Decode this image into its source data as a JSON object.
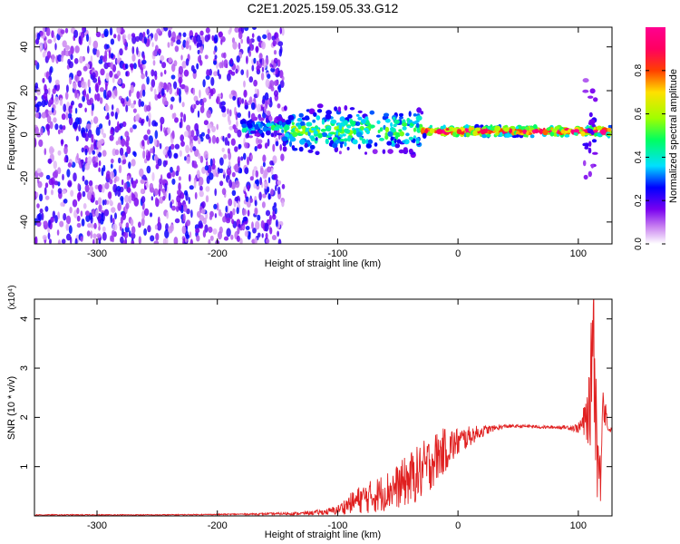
{
  "title": "C2E1.2025.159.05.33.G12",
  "chart_data": [
    {
      "type": "heatmap",
      "xlabel": "Height of straight line (km)",
      "ylabel": "Frequency (Hz)",
      "xlim": [
        -352,
        128
      ],
      "ylim": [
        -50,
        49
      ],
      "xticks": [
        -300,
        -200,
        -100,
        0,
        100
      ],
      "yticks": [
        -40,
        -20,
        0,
        20,
        40
      ],
      "grid": false,
      "colorbar": {
        "label": "Normalized spectral amplitude",
        "range": [
          0,
          1
        ],
        "ticks": [
          0.0,
          0.2,
          0.4,
          0.6,
          0.8
        ],
        "tick_labels": [
          "0.0",
          "0.2",
          "0.4",
          "0.6",
          "0.8"
        ],
        "colors": [
          "#ffffff",
          "#c880f0",
          "#7800f0",
          "#0000ff",
          "#00e0ff",
          "#00ff60",
          "#a0ff00",
          "#ffe000",
          "#ff4000",
          "#ff0060",
          "#ff0090"
        ]
      },
      "regions": [
        {
          "x_range": [
            -352,
            -145
          ],
          "freq_range": [
            -50,
            49
          ],
          "level": 0.12,
          "pattern": "scattered noise"
        },
        {
          "x_range": [
            -180,
            -145
          ],
          "freq_range": [
            -2,
            8
          ],
          "level": 0.45
        },
        {
          "x_range": [
            -145,
            -30
          ],
          "freq_range": [
            -10,
            14
          ],
          "level": 0.55
        },
        {
          "x_range": [
            -30,
            128
          ],
          "freq_range": [
            -1,
            4
          ],
          "level": 0.95
        },
        {
          "x_range": [
            105,
            115
          ],
          "freq_range": [
            -28,
            32
          ],
          "level": 0.3
        }
      ]
    },
    {
      "type": "line",
      "xlabel": "Height of straight line (km)",
      "ylabel": "SNR (10 * v/v)",
      "y_multiplier": "(x10⁴)",
      "xlim": [
        -352,
        128
      ],
      "ylim": [
        0,
        4.4
      ],
      "xticks": [
        -300,
        -200,
        -100,
        0,
        100
      ],
      "yticks": [
        1,
        2,
        3,
        4
      ],
      "color": "#e02020",
      "grid": false,
      "series": [
        {
          "x": [
            -352,
            -300,
            -250,
            -200,
            -160,
            -130,
            -110,
            -100,
            -90,
            -80,
            -70,
            -60,
            -50,
            -40,
            -30,
            -20,
            -10,
            0,
            10,
            20,
            30,
            40,
            50,
            60,
            70,
            80,
            90,
            100,
            105,
            110,
            112,
            115,
            118,
            120,
            125,
            128
          ],
          "values": [
            0.02,
            0.02,
            0.02,
            0.03,
            0.04,
            0.05,
            0.08,
            0.12,
            0.25,
            0.35,
            0.4,
            0.5,
            0.6,
            0.75,
            0.9,
            1.15,
            1.35,
            1.5,
            1.62,
            1.72,
            1.78,
            1.82,
            1.82,
            1.82,
            1.8,
            1.8,
            1.8,
            1.78,
            1.9,
            2.2,
            4.3,
            1.8,
            0.5,
            2.5,
            1.75,
            1.75
          ],
          "noise_amplitude": [
            0.01,
            0.01,
            0.01,
            0.01,
            0.02,
            0.03,
            0.06,
            0.1,
            0.2,
            0.3,
            0.35,
            0.4,
            0.45,
            0.55,
            0.6,
            0.55,
            0.45,
            0.3,
            0.2,
            0.12,
            0.06,
            0.04,
            0.03,
            0.03,
            0.03,
            0.03,
            0.04,
            0.1,
            0.35,
            0.8,
            1.6,
            1.2,
            0.9,
            0.6,
            0.04,
            0.04
          ]
        }
      ]
    }
  ]
}
